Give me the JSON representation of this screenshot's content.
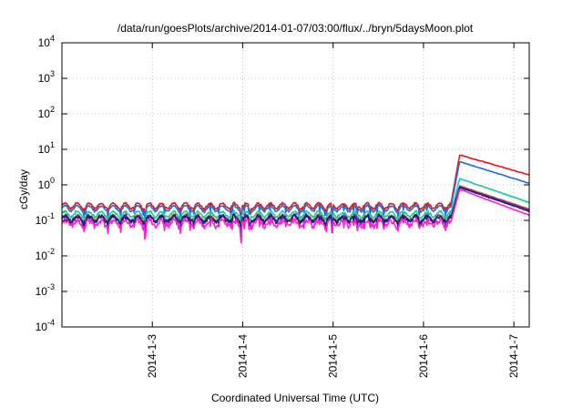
{
  "chart_data": {
    "type": "line",
    "title": "/data/run/goesPlots/archive/2014-01-07/03:00/flux/../bryn/5daysMoon.plot",
    "xlabel": "Coordinated Universal Time (UTC)",
    "ylabel": "cGy/day",
    "yscale": "log",
    "ylim": [
      0.0001,
      10000
    ],
    "xlim": [
      0.0,
      5.17
    ],
    "grid": true,
    "x_unit_note": "days since 2014-1-2 00:00",
    "x_ticks": [
      {
        "value": 1,
        "label": "2014-1-3"
      },
      {
        "value": 2,
        "label": "2014-1-4"
      },
      {
        "value": 3,
        "label": "2014-1-5"
      },
      {
        "value": 4,
        "label": "2014-1-6"
      },
      {
        "value": 5,
        "label": "2014-1-7"
      }
    ],
    "y_ticks": [
      {
        "exp": 4
      },
      {
        "exp": 3
      },
      {
        "exp": 2
      },
      {
        "exp": 1
      },
      {
        "exp": 0
      },
      {
        "exp": -1
      },
      {
        "exp": -2
      },
      {
        "exp": -3
      },
      {
        "exp": -4
      }
    ],
    "event": {
      "onset": 4.3,
      "peak_time": 4.4,
      "end": 5.17
    },
    "series": [
      {
        "color": "#e8161b",
        "base": 0.26,
        "peak": 7.0,
        "end_value": 1.9
      },
      {
        "color": "#1f6fde",
        "base": 0.22,
        "peak": 4.5,
        "end_value": 1.1
      },
      {
        "color": "#1fc79f",
        "base": 0.15,
        "peak": 1.5,
        "end_value": 0.32
      },
      {
        "color": "#d4a017",
        "base": 0.12,
        "peak": 0.95,
        "end_value": 0.21
      },
      {
        "color": "#7b1fa2",
        "base": 0.115,
        "peak": 0.9,
        "end_value": 0.2
      },
      {
        "color": "#1a237e",
        "base": 0.11,
        "peak": 0.85,
        "end_value": 0.18
      },
      {
        "color": "#ff1fd2",
        "base": 0.085,
        "peak": 0.75,
        "end_value": 0.14
      }
    ]
  }
}
